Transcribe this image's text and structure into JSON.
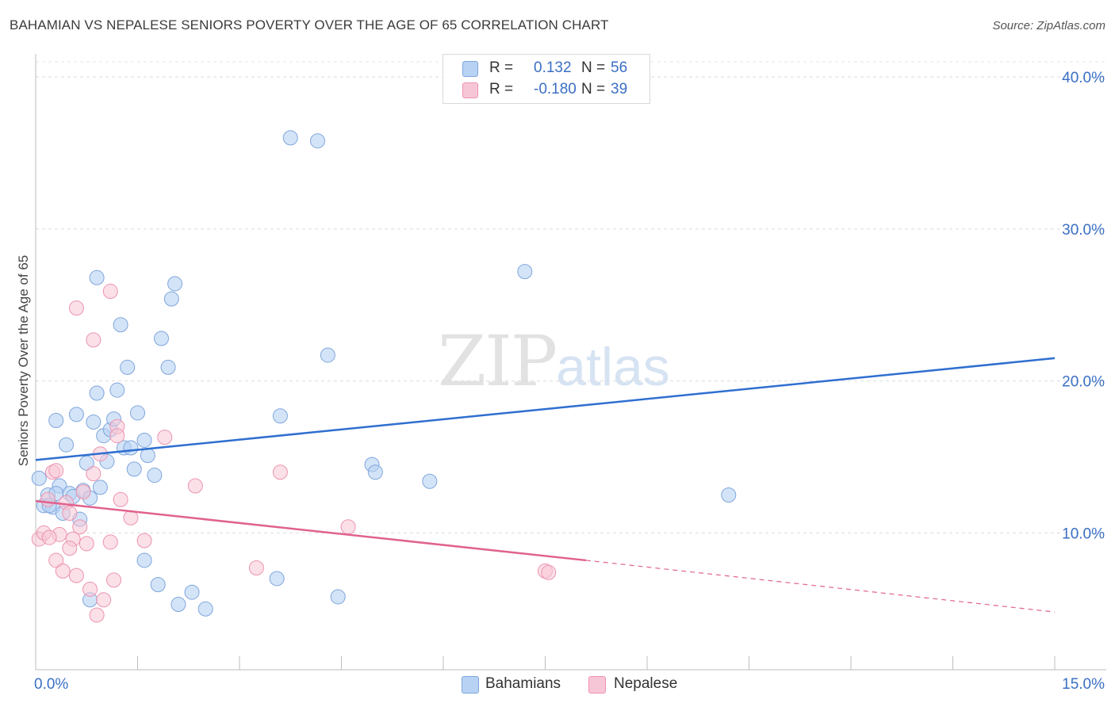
{
  "header": {
    "title": "BAHAMIAN VS NEPALESE SENIORS POVERTY OVER THE AGE OF 65 CORRELATION CHART",
    "source": "Source: ZipAtlas.com"
  },
  "watermark": {
    "zip": "ZIP",
    "atlas": "atlas"
  },
  "legend": {
    "rows": [
      {
        "r_label": "R =",
        "r_value": "0.132",
        "n_label": "N =",
        "n_value": "56"
      },
      {
        "r_label": "R =",
        "r_value": "-0.180",
        "n_label": "N =",
        "n_value": "39"
      }
    ]
  },
  "bottom_legend": {
    "bahamians": "Bahamians",
    "nepalese": "Nepalese"
  },
  "colors": {
    "blue_fill": "#b8d2f4",
    "blue_stroke": "#7ea6dc",
    "blue_line": "#2f6fd0",
    "pink_fill": "#f7c6d6",
    "pink_stroke": "#ec94b0",
    "pink_line": "#e0628e",
    "axis_text": "#3a6fc4"
  },
  "chart_data": {
    "type": "scatter",
    "title": "BAHAMIAN VS NEPALESE SENIORS POVERTY OVER THE AGE OF 65 CORRELATION CHART",
    "xlabel": "",
    "ylabel": "Seniors Poverty Over the Age of 65",
    "xlim": [
      0,
      15
    ],
    "ylim": [
      1,
      41
    ],
    "x_tick_labels": [
      "0.0%",
      "15.0%"
    ],
    "y_ticks": [
      10,
      20,
      30,
      40
    ],
    "y_tick_labels": [
      "10.0%",
      "20.0%",
      "30.0%",
      "40.0%"
    ],
    "series": [
      {
        "name": "Bahamians",
        "r": 0.132,
        "n": 56,
        "trend": {
          "x0": 0,
          "y0": 14.8,
          "x1": 15,
          "y1": 21.5
        },
        "points": [
          [
            0.05,
            13.6
          ],
          [
            0.12,
            11.8
          ],
          [
            0.18,
            12.5
          ],
          [
            0.25,
            11.7
          ],
          [
            0.3,
            17.4
          ],
          [
            0.35,
            13.1
          ],
          [
            0.4,
            11.3
          ],
          [
            0.45,
            15.8
          ],
          [
            0.5,
            12.6
          ],
          [
            0.55,
            12.4
          ],
          [
            0.6,
            17.8
          ],
          [
            0.65,
            10.9
          ],
          [
            0.7,
            12.8
          ],
          [
            0.75,
            14.6
          ],
          [
            0.8,
            12.3
          ],
          [
            0.85,
            17.3
          ],
          [
            0.9,
            19.2
          ],
          [
            0.95,
            13
          ],
          [
            1.0,
            16.4
          ],
          [
            1.05,
            14.7
          ],
          [
            1.1,
            16.8
          ],
          [
            1.15,
            17.5
          ],
          [
            1.2,
            19.4
          ],
          [
            1.25,
            23.7
          ],
          [
            1.3,
            15.6
          ],
          [
            1.4,
            15.6
          ],
          [
            1.45,
            14.2
          ],
          [
            1.5,
            17.9
          ],
          [
            1.6,
            16.1
          ],
          [
            1.65,
            15.1
          ],
          [
            1.75,
            13.8
          ],
          [
            1.85,
            22.8
          ],
          [
            1.95,
            20.9
          ],
          [
            2.0,
            25.4
          ],
          [
            2.05,
            26.4
          ],
          [
            0.9,
            26.8
          ],
          [
            1.35,
            20.9
          ],
          [
            0.8,
            5.6
          ],
          [
            1.6,
            8.2
          ],
          [
            1.8,
            6.6
          ],
          [
            2.1,
            5.3
          ],
          [
            2.3,
            6.1
          ],
          [
            2.5,
            5.0
          ],
          [
            3.55,
            7.0
          ],
          [
            3.75,
            36.0
          ],
          [
            4.15,
            35.8
          ],
          [
            4.3,
            21.7
          ],
          [
            4.45,
            5.8
          ],
          [
            3.6,
            17.7
          ],
          [
            4.95,
            14.5
          ],
          [
            5.0,
            14.0
          ],
          [
            5.8,
            13.4
          ],
          [
            7.2,
            27.2
          ],
          [
            10.2,
            12.5
          ],
          [
            0.3,
            12.6
          ],
          [
            0.2,
            11.8
          ]
        ]
      },
      {
        "name": "Nepalese",
        "r": -0.18,
        "n": 39,
        "trend": {
          "x0": 0,
          "y0": 12.1,
          "x1": 8.1,
          "y1": 8.2,
          "dashed_to_x": 15,
          "dashed_to_y": 4.8
        },
        "points": [
          [
            0.05,
            9.6
          ],
          [
            0.12,
            10.0
          ],
          [
            0.18,
            12.2
          ],
          [
            0.25,
            14.0
          ],
          [
            0.3,
            8.2
          ],
          [
            0.35,
            9.9
          ],
          [
            0.4,
            7.5
          ],
          [
            0.45,
            12.0
          ],
          [
            0.5,
            11.3
          ],
          [
            0.55,
            9.6
          ],
          [
            0.6,
            7.2
          ],
          [
            0.65,
            10.4
          ],
          [
            0.7,
            12.7
          ],
          [
            0.75,
            9.3
          ],
          [
            0.8,
            6.3
          ],
          [
            0.85,
            13.9
          ],
          [
            0.9,
            4.6
          ],
          [
            0.95,
            15.2
          ],
          [
            1.0,
            5.6
          ],
          [
            1.1,
            9.4
          ],
          [
            1.15,
            6.9
          ],
          [
            1.2,
            17.0
          ],
          [
            1.25,
            12.2
          ],
          [
            1.4,
            11.0
          ],
          [
            1.6,
            9.5
          ],
          [
            1.9,
            16.3
          ],
          [
            2.35,
            13.1
          ],
          [
            0.6,
            24.8
          ],
          [
            0.85,
            22.7
          ],
          [
            1.1,
            25.9
          ],
          [
            3.25,
            7.7
          ],
          [
            3.6,
            14.0
          ],
          [
            4.6,
            10.4
          ],
          [
            7.5,
            7.5
          ],
          [
            7.55,
            7.4
          ],
          [
            0.2,
            9.7
          ],
          [
            0.3,
            14.1
          ],
          [
            0.5,
            9.0
          ],
          [
            1.2,
            16.4
          ]
        ]
      }
    ]
  }
}
